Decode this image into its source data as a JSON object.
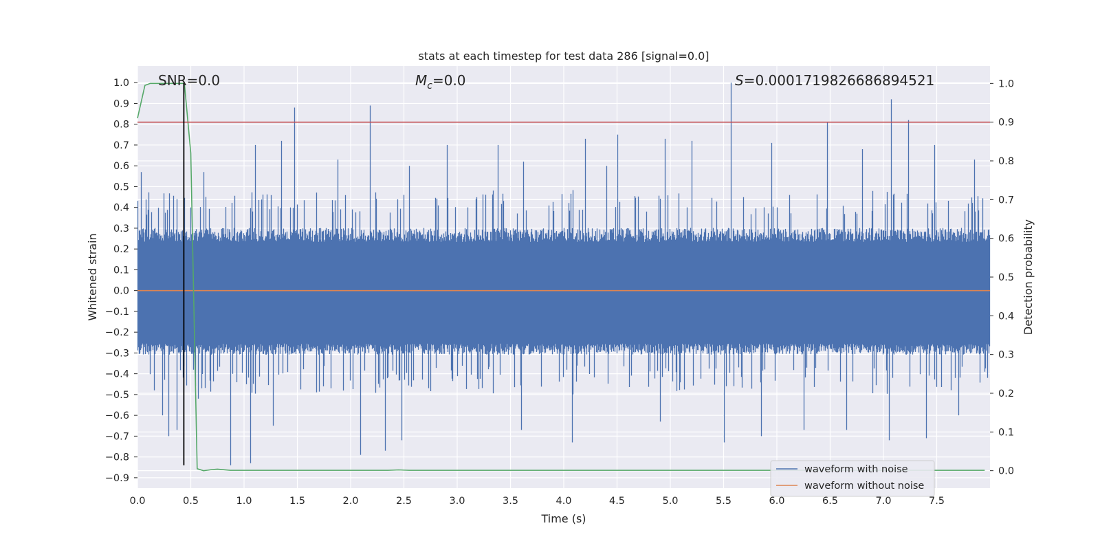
{
  "chart_data": {
    "type": "line",
    "title": "stats at each timestep for test data 286 [signal=0.0]",
    "xlabel": "Time (s)",
    "ylabel": "Whitened strain",
    "ylabel_right": "Detection probability",
    "xlim": [
      0.0,
      8.0
    ],
    "ylim": [
      -0.95,
      1.08
    ],
    "ylim_right": [
      -0.045,
      1.045
    ],
    "x_ticks": [
      "0.0",
      "0.5",
      "1.0",
      "1.5",
      "2.0",
      "2.5",
      "3.0",
      "3.5",
      "4.0",
      "4.5",
      "5.0",
      "5.5",
      "6.0",
      "6.5",
      "7.0",
      "7.5"
    ],
    "x_tick_values": [
      0.0,
      0.5,
      1.0,
      1.5,
      2.0,
      2.5,
      3.0,
      3.5,
      4.0,
      4.5,
      5.0,
      5.5,
      6.0,
      6.5,
      7.0,
      7.5
    ],
    "y_ticks": [
      "1.0",
      "0.9",
      "0.8",
      "0.7",
      "0.6",
      "0.5",
      "0.4",
      "0.3",
      "0.2",
      "0.1",
      "0.0",
      "−0.1",
      "−0.2",
      "−0.3",
      "−0.4",
      "−0.5",
      "−0.6",
      "−0.7",
      "−0.8",
      "−0.9"
    ],
    "y_tick_values": [
      1.0,
      0.9,
      0.8,
      0.7,
      0.6,
      0.5,
      0.4,
      0.3,
      0.2,
      0.1,
      0.0,
      -0.1,
      -0.2,
      -0.3,
      -0.4,
      -0.5,
      -0.6,
      -0.7,
      -0.8,
      -0.9
    ],
    "y_right_ticks": [
      "1.0",
      "0.9",
      "0.8",
      "0.7",
      "0.6",
      "0.5",
      "0.4",
      "0.3",
      "0.2",
      "0.1",
      "0.0"
    ],
    "y_right_tick_values": [
      1.0,
      0.9,
      0.8,
      0.7,
      0.6,
      0.5,
      0.4,
      0.3,
      0.2,
      0.1,
      0.0
    ],
    "annotations": {
      "snr": "SNR=0.0",
      "mc": "=0.0",
      "mc_symbol": "M",
      "mc_sub": "c",
      "s": "=0.0001719826686894521",
      "s_symbol": "S"
    },
    "grid": true,
    "legend": {
      "placement": "lower-right",
      "entries": [
        "waveform with noise",
        "waveform without noise"
      ]
    },
    "series": [
      {
        "name": "waveform with noise",
        "color": "#4c72b0",
        "axis": "left",
        "kind": "noise",
        "core_amplitude": 0.3,
        "positive_spikes": [
          [
            0.03,
            0.57
          ],
          [
            0.37,
            0.44
          ],
          [
            0.62,
            0.57
          ],
          [
            1.1,
            0.7
          ],
          [
            1.35,
            0.72
          ],
          [
            1.47,
            0.88
          ],
          [
            1.88,
            0.63
          ],
          [
            2.18,
            0.89
          ],
          [
            2.55,
            0.6
          ],
          [
            2.9,
            0.7
          ],
          [
            3.38,
            0.7
          ],
          [
            3.62,
            0.62
          ],
          [
            4.2,
            0.73
          ],
          [
            4.4,
            0.6
          ],
          [
            4.5,
            0.75
          ],
          [
            4.95,
            0.73
          ],
          [
            5.2,
            0.72
          ],
          [
            5.57,
            1.0
          ],
          [
            5.95,
            0.71
          ],
          [
            6.47,
            0.81
          ],
          [
            6.8,
            0.68
          ],
          [
            7.07,
            0.92
          ],
          [
            7.23,
            0.82
          ],
          [
            7.48,
            0.7
          ],
          [
            7.85,
            0.63
          ]
        ],
        "negative_spikes": [
          [
            0.23,
            -0.6
          ],
          [
            0.29,
            -0.7
          ],
          [
            0.37,
            -0.67
          ],
          [
            0.57,
            -0.52
          ],
          [
            0.87,
            -0.84
          ],
          [
            1.06,
            -0.83
          ],
          [
            1.27,
            -0.65
          ],
          [
            2.09,
            -0.79
          ],
          [
            2.32,
            -0.77
          ],
          [
            2.48,
            -0.72
          ],
          [
            3.6,
            -0.67
          ],
          [
            4.08,
            -0.73
          ],
          [
            4.9,
            -0.63
          ],
          [
            5.5,
            -0.73
          ],
          [
            5.85,
            -0.7
          ],
          [
            6.25,
            -0.67
          ],
          [
            6.65,
            -0.67
          ],
          [
            7.05,
            -0.72
          ],
          [
            7.4,
            -0.71
          ],
          [
            7.7,
            -0.6
          ]
        ]
      },
      {
        "name": "waveform without noise",
        "color": "#dd8452",
        "axis": "left",
        "x": [
          0.0,
          8.0
        ],
        "y": [
          0.0,
          0.0
        ]
      },
      {
        "color": "#55a868",
        "axis": "right",
        "x": [
          0.0,
          0.07,
          0.12,
          0.2,
          0.3,
          0.44,
          0.5,
          0.56,
          0.62,
          0.7,
          0.75,
          0.87,
          1.0,
          1.5,
          2.0,
          2.35,
          2.45,
          2.55,
          3.0,
          4.0,
          5.0,
          6.0,
          7.0,
          7.95
        ],
        "y": [
          0.91,
          0.995,
          1.0,
          1.0,
          1.0,
          1.0,
          0.82,
          0.005,
          0.0,
          0.003,
          0.004,
          0.001,
          0.001,
          0.001,
          0.001,
          0.001,
          0.002,
          0.001,
          0.001,
          0.001,
          0.001,
          0.001,
          0.001,
          0.001
        ]
      },
      {
        "color": "#c44e52",
        "axis": "right",
        "x": [
          0.0,
          8.0
        ],
        "y": [
          0.9,
          0.9
        ]
      },
      {
        "color": "#000000",
        "axis": "left",
        "x": [
          0.435,
          0.435
        ],
        "y": [
          1.0,
          -0.84
        ]
      }
    ]
  }
}
